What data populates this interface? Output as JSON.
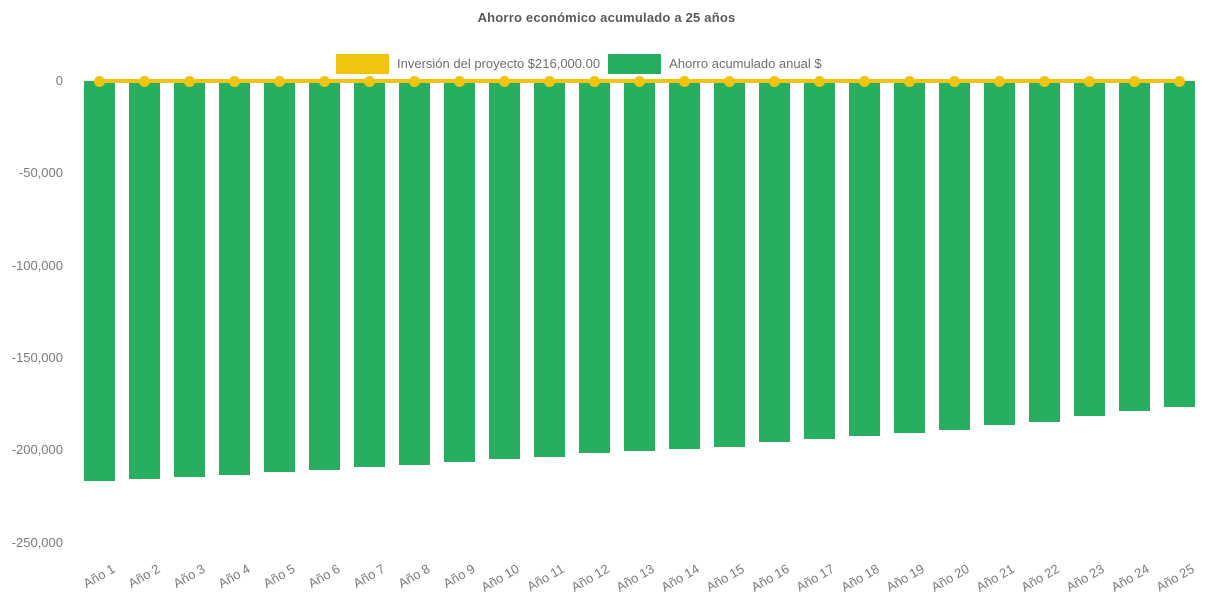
{
  "title": "Ahorro económico acumulado a 25 años",
  "colors": {
    "investment_yellow": "#f1c40f",
    "savings_green": "#27ae60",
    "title_text": "#58595b",
    "axis_text": "#7b7b7b",
    "legend_text": "#6e6e6e",
    "background": "#ffffff"
  },
  "legend": [
    {
      "label": "Inversión del proyecto $216,000.00",
      "color": "#f1c40f"
    },
    {
      "label": "Ahorro acumulado anual $",
      "color": "#27ae60"
    }
  ],
  "chart_data": {
    "type": "bar",
    "title": "Ahorro económico acumulado a 25 años",
    "xlabel": "",
    "ylabel": "",
    "ylim": [
      -250000,
      0
    ],
    "grid": false,
    "legend_position": "top",
    "categories": [
      "Año 1",
      "Año 2",
      "Año 3",
      "Año 4",
      "Año 5",
      "Año 6",
      "Año 7",
      "Año 8",
      "Año 9",
      "Año 10",
      "Año 11",
      "Año 12",
      "Año 13",
      "Año 14",
      "Año 15",
      "Año 16",
      "Año 17",
      "Año 18",
      "Año 19",
      "Año 20",
      "Año 21",
      "Año 22",
      "Año 23",
      "Año 24",
      "Año 25"
    ],
    "series": [
      {
        "name": "Inversión del proyecto $216,000.00",
        "type": "line",
        "color": "#f1c40f",
        "values": [
          0,
          0,
          0,
          0,
          0,
          0,
          0,
          0,
          0,
          0,
          0,
          0,
          0,
          0,
          0,
          0,
          0,
          0,
          0,
          0,
          0,
          0,
          0,
          0,
          0
        ]
      },
      {
        "name": "Ahorro acumulado anual $",
        "type": "bar",
        "color": "#27ae60",
        "values": [
          -216500,
          -215500,
          -214500,
          -213500,
          -212000,
          -210500,
          -209000,
          -208000,
          -206500,
          -205000,
          -203500,
          -201500,
          -200500,
          -199500,
          -198000,
          -195500,
          -194000,
          -192500,
          -190500,
          -189000,
          -186500,
          -184500,
          -181500,
          -179000,
          -176500
        ]
      }
    ],
    "yticks": [
      {
        "label": "0",
        "value": 0
      },
      {
        "label": "-50,000",
        "value": -50000
      },
      {
        "label": "-100,000",
        "value": -100000
      },
      {
        "label": "-150,000",
        "value": -150000
      },
      {
        "label": "-200,000",
        "value": -200000
      },
      {
        "label": "-250,000",
        "value": -250000
      }
    ]
  }
}
